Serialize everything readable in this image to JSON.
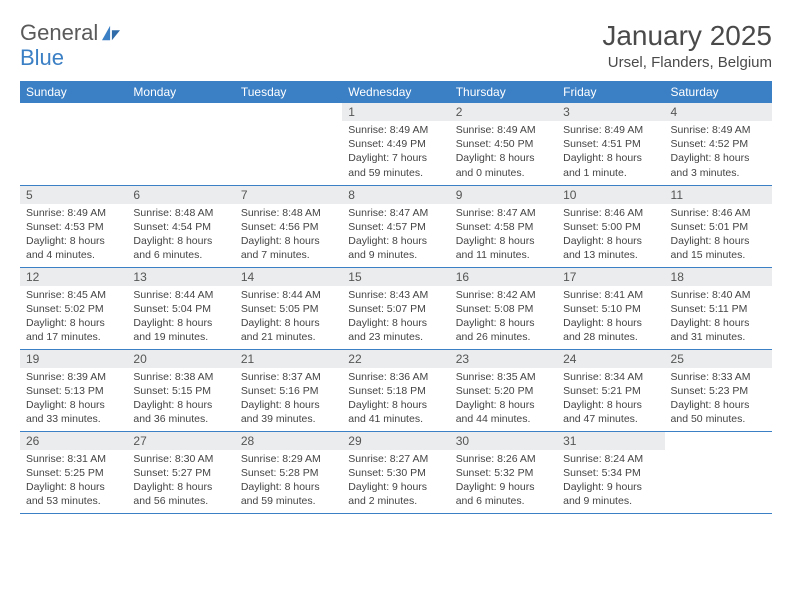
{
  "logo": {
    "text1": "General",
    "text2": "Blue"
  },
  "title": "January 2025",
  "location": "Ursel, Flanders, Belgium",
  "colors": {
    "header_bg": "#3b7fc4",
    "header_text": "#ffffff",
    "daynum_bg": "#ebeced",
    "border": "#3b7fc4",
    "body_text": "#444444",
    "logo_gray": "#5a5a5a",
    "logo_blue": "#3b7fc4"
  },
  "weekdays": [
    "Sunday",
    "Monday",
    "Tuesday",
    "Wednesday",
    "Thursday",
    "Friday",
    "Saturday"
  ],
  "weeks": [
    [
      null,
      null,
      null,
      {
        "n": "1",
        "sr": "8:49 AM",
        "ss": "4:49 PM",
        "dl": "7 hours and 59 minutes."
      },
      {
        "n": "2",
        "sr": "8:49 AM",
        "ss": "4:50 PM",
        "dl": "8 hours and 0 minutes."
      },
      {
        "n": "3",
        "sr": "8:49 AM",
        "ss": "4:51 PM",
        "dl": "8 hours and 1 minute."
      },
      {
        "n": "4",
        "sr": "8:49 AM",
        "ss": "4:52 PM",
        "dl": "8 hours and 3 minutes."
      }
    ],
    [
      {
        "n": "5",
        "sr": "8:49 AM",
        "ss": "4:53 PM",
        "dl": "8 hours and 4 minutes."
      },
      {
        "n": "6",
        "sr": "8:48 AM",
        "ss": "4:54 PM",
        "dl": "8 hours and 6 minutes."
      },
      {
        "n": "7",
        "sr": "8:48 AM",
        "ss": "4:56 PM",
        "dl": "8 hours and 7 minutes."
      },
      {
        "n": "8",
        "sr": "8:47 AM",
        "ss": "4:57 PM",
        "dl": "8 hours and 9 minutes."
      },
      {
        "n": "9",
        "sr": "8:47 AM",
        "ss": "4:58 PM",
        "dl": "8 hours and 11 minutes."
      },
      {
        "n": "10",
        "sr": "8:46 AM",
        "ss": "5:00 PM",
        "dl": "8 hours and 13 minutes."
      },
      {
        "n": "11",
        "sr": "8:46 AM",
        "ss": "5:01 PM",
        "dl": "8 hours and 15 minutes."
      }
    ],
    [
      {
        "n": "12",
        "sr": "8:45 AM",
        "ss": "5:02 PM",
        "dl": "8 hours and 17 minutes."
      },
      {
        "n": "13",
        "sr": "8:44 AM",
        "ss": "5:04 PM",
        "dl": "8 hours and 19 minutes."
      },
      {
        "n": "14",
        "sr": "8:44 AM",
        "ss": "5:05 PM",
        "dl": "8 hours and 21 minutes."
      },
      {
        "n": "15",
        "sr": "8:43 AM",
        "ss": "5:07 PM",
        "dl": "8 hours and 23 minutes."
      },
      {
        "n": "16",
        "sr": "8:42 AM",
        "ss": "5:08 PM",
        "dl": "8 hours and 26 minutes."
      },
      {
        "n": "17",
        "sr": "8:41 AM",
        "ss": "5:10 PM",
        "dl": "8 hours and 28 minutes."
      },
      {
        "n": "18",
        "sr": "8:40 AM",
        "ss": "5:11 PM",
        "dl": "8 hours and 31 minutes."
      }
    ],
    [
      {
        "n": "19",
        "sr": "8:39 AM",
        "ss": "5:13 PM",
        "dl": "8 hours and 33 minutes."
      },
      {
        "n": "20",
        "sr": "8:38 AM",
        "ss": "5:15 PM",
        "dl": "8 hours and 36 minutes."
      },
      {
        "n": "21",
        "sr": "8:37 AM",
        "ss": "5:16 PM",
        "dl": "8 hours and 39 minutes."
      },
      {
        "n": "22",
        "sr": "8:36 AM",
        "ss": "5:18 PM",
        "dl": "8 hours and 41 minutes."
      },
      {
        "n": "23",
        "sr": "8:35 AM",
        "ss": "5:20 PM",
        "dl": "8 hours and 44 minutes."
      },
      {
        "n": "24",
        "sr": "8:34 AM",
        "ss": "5:21 PM",
        "dl": "8 hours and 47 minutes."
      },
      {
        "n": "25",
        "sr": "8:33 AM",
        "ss": "5:23 PM",
        "dl": "8 hours and 50 minutes."
      }
    ],
    [
      {
        "n": "26",
        "sr": "8:31 AM",
        "ss": "5:25 PM",
        "dl": "8 hours and 53 minutes."
      },
      {
        "n": "27",
        "sr": "8:30 AM",
        "ss": "5:27 PM",
        "dl": "8 hours and 56 minutes."
      },
      {
        "n": "28",
        "sr": "8:29 AM",
        "ss": "5:28 PM",
        "dl": "8 hours and 59 minutes."
      },
      {
        "n": "29",
        "sr": "8:27 AM",
        "ss": "5:30 PM",
        "dl": "9 hours and 2 minutes."
      },
      {
        "n": "30",
        "sr": "8:26 AM",
        "ss": "5:32 PM",
        "dl": "9 hours and 6 minutes."
      },
      {
        "n": "31",
        "sr": "8:24 AM",
        "ss": "5:34 PM",
        "dl": "9 hours and 9 minutes."
      },
      null
    ]
  ],
  "labels": {
    "sunrise": "Sunrise:",
    "sunset": "Sunset:",
    "daylight": "Daylight:"
  }
}
